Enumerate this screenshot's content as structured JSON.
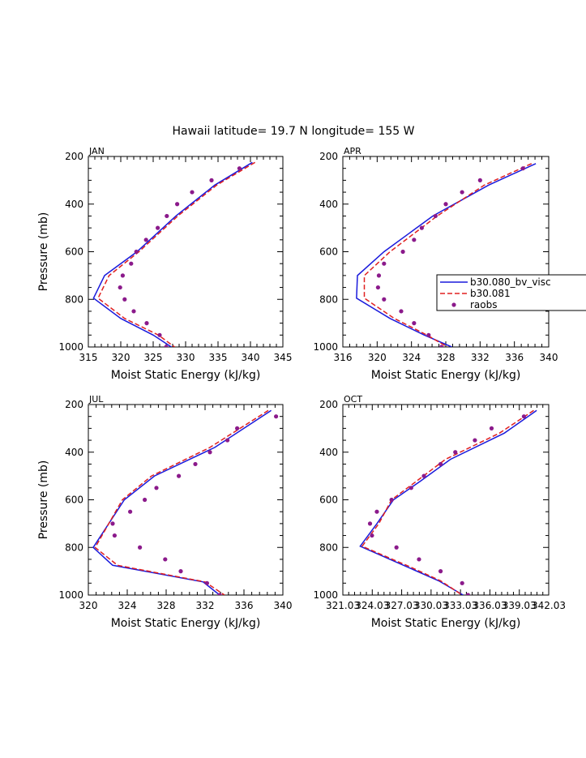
{
  "title": "Hawaii  latitude= 19.7 N longitude= 155 W",
  "colors": {
    "model1": "#1a1adc",
    "model2": "#e02020",
    "raobs": "#8b1a8b"
  },
  "legend": {
    "entries": [
      "b30.080_bv_visc",
      "b30.081",
      "raobs"
    ]
  },
  "chart_data": [
    {
      "type": "line",
      "panel": "JAN",
      "xlabel": "Moist Static Energy (kJ/kg)",
      "ylabel": "Pressure (mb)",
      "xlim": [
        315,
        345
      ],
      "ylim": [
        1000,
        200
      ],
      "x_ticks": [
        315,
        320,
        325,
        330,
        335,
        340,
        345
      ],
      "x_tick_labels": [
        "315",
        "320",
        "325",
        "330",
        "335",
        "340",
        "345"
      ],
      "y_ticks": [
        200,
        400,
        600,
        800,
        1000
      ],
      "series": [
        {
          "name": "b30.080_bv_visc",
          "kind": "line",
          "x": [
            340.3,
            334.5,
            328.5,
            322.5,
            317.5,
            315.8,
            320.0,
            325.0,
            327.8
          ],
          "y": [
            225,
            320,
            450,
            600,
            700,
            795,
            880,
            950,
            1000
          ]
        },
        {
          "name": "b30.081",
          "kind": "dashed",
          "x": [
            340.7,
            334.8,
            328.8,
            322.8,
            318.2,
            316.5,
            320.6,
            325.8,
            328.3
          ],
          "y": [
            225,
            320,
            450,
            600,
            700,
            795,
            880,
            950,
            1000
          ]
        },
        {
          "name": "raobs",
          "kind": "points",
          "x": [
            338.3,
            334.0,
            331.0,
            328.7,
            327.1,
            325.7,
            323.9,
            322.4,
            321.6,
            320.3,
            319.9,
            320.6,
            322.0,
            324.0,
            326.0,
            327.0
          ],
          "y": [
            250,
            300,
            350,
            400,
            450,
            500,
            550,
            600,
            650,
            700,
            750,
            800,
            850,
            900,
            950,
            1000
          ]
        }
      ]
    },
    {
      "type": "line",
      "panel": "APR",
      "xlabel": "Moist Static Energy (kJ/kg)",
      "ylabel": "",
      "xlim": [
        316,
        340
      ],
      "ylim": [
        1000,
        200
      ],
      "x_ticks": [
        316,
        320,
        324,
        328,
        332,
        336,
        340
      ],
      "x_tick_labels": [
        "316",
        "320",
        "324",
        "328",
        "332",
        "336",
        "340"
      ],
      "y_ticks": [
        200,
        400,
        600,
        800,
        1000
      ],
      "series": [
        {
          "name": "b30.080_bv_visc",
          "kind": "line",
          "x": [
            338.5,
            333.0,
            326.5,
            320.8,
            317.7,
            317.6,
            321.5,
            325.5,
            328.7
          ],
          "y": [
            230,
            320,
            450,
            600,
            700,
            795,
            880,
            950,
            1000
          ]
        },
        {
          "name": "b30.081",
          "kind": "dashed",
          "x": [
            338.0,
            332.5,
            327.0,
            321.5,
            318.5,
            318.5,
            322.0,
            325.8,
            328.2
          ],
          "y": [
            230,
            320,
            450,
            600,
            700,
            795,
            880,
            950,
            1000
          ]
        },
        {
          "name": "raobs",
          "kind": "points",
          "x": [
            337.0,
            332.0,
            329.9,
            328.0,
            326.8,
            325.2,
            324.3,
            323.0,
            320.8,
            320.2,
            320.1,
            320.8,
            322.8,
            324.3,
            326.0,
            327.5
          ],
          "y": [
            250,
            300,
            350,
            400,
            450,
            500,
            550,
            600,
            650,
            700,
            750,
            800,
            850,
            900,
            950,
            1000
          ]
        }
      ]
    },
    {
      "type": "line",
      "panel": "JUL",
      "xlabel": "Moist Static Energy (kJ/kg)",
      "ylabel": "Pressure (mb)",
      "xlim": [
        320,
        340
      ],
      "ylim": [
        1000,
        200
      ],
      "x_ticks": [
        320,
        324,
        328,
        332,
        336,
        340
      ],
      "x_tick_labels": [
        "320",
        "324",
        "328",
        "332",
        "336",
        "340"
      ],
      "y_ticks": [
        200,
        400,
        600,
        800,
        1000
      ],
      "series": [
        {
          "name": "b30.080_bv_visc",
          "kind": "line",
          "x": [
            338.8,
            333.0,
            326.8,
            323.7,
            320.5,
            322.5,
            331.8,
            333.5
          ],
          "y": [
            225,
            380,
            500,
            600,
            800,
            875,
            945,
            1000
          ]
        },
        {
          "name": "b30.081",
          "kind": "dashed",
          "x": [
            338.5,
            332.5,
            326.5,
            323.5,
            320.7,
            323.0,
            332.0,
            334.0
          ],
          "y": [
            225,
            380,
            500,
            600,
            800,
            875,
            945,
            1000
          ]
        },
        {
          "name": "raobs",
          "kind": "points",
          "x": [
            339.3,
            335.3,
            334.3,
            332.5,
            331.0,
            329.3,
            327.0,
            325.8,
            324.3,
            322.5,
            322.7,
            325.3,
            327.9,
            329.5,
            332.2,
            333.5
          ],
          "y": [
            250,
            300,
            350,
            400,
            450,
            500,
            550,
            600,
            650,
            700,
            750,
            800,
            850,
            900,
            950,
            1000
          ]
        }
      ]
    },
    {
      "type": "line",
      "panel": "OCT",
      "xlabel": "Moist Static Energy (kJ/kg)",
      "ylabel": "",
      "xlim": [
        321.03,
        342.03
      ],
      "ylim": [
        1000,
        200
      ],
      "x_ticks": [
        321.03,
        324.03,
        327.03,
        330.03,
        333.03,
        336.03,
        339.03,
        342.03
      ],
      "x_tick_labels": [
        "321.03",
        "324.03",
        "327.03",
        "330.03",
        "333.03",
        "336.03",
        "339.03",
        "342.03"
      ],
      "y_ticks": [
        200,
        400,
        600,
        800,
        1000
      ],
      "series": [
        {
          "name": "b30.080_bv_visc",
          "kind": "line",
          "x": [
            340.8,
            337.5,
            332.0,
            329.0,
            326.2,
            324.5,
            322.8,
            327.5,
            330.8,
            333.3
          ],
          "y": [
            225,
            320,
            430,
            520,
            600,
            700,
            795,
            880,
            940,
            1000
          ]
        },
        {
          "name": "b30.081",
          "kind": "dashed",
          "x": [
            340.5,
            337.0,
            331.5,
            328.6,
            326.0,
            324.7,
            323.0,
            327.8,
            331.0,
            333.2
          ],
          "y": [
            225,
            320,
            430,
            520,
            600,
            700,
            795,
            880,
            940,
            1000
          ]
        },
        {
          "name": "raobs",
          "kind": "points",
          "x": [
            339.5,
            336.2,
            334.5,
            332.5,
            331.0,
            329.3,
            328.0,
            326.0,
            324.5,
            323.8,
            324.0,
            326.5,
            328.8,
            331.0,
            333.2,
            333.8
          ],
          "y": [
            250,
            300,
            350,
            400,
            450,
            500,
            550,
            600,
            650,
            700,
            750,
            800,
            850,
            900,
            950,
            1000
          ]
        }
      ]
    }
  ]
}
